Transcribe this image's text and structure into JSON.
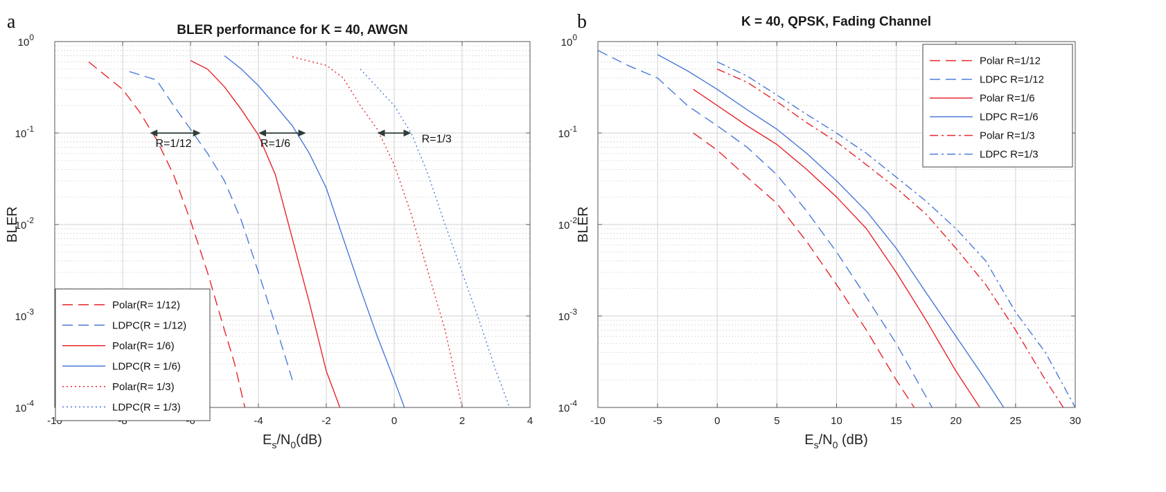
{
  "panels": [
    {
      "letter": "a"
    },
    {
      "letter": "b"
    }
  ],
  "colors": {
    "polar": "#e8232a",
    "ldpc": "#4a78d8",
    "arrow": "#2e3d3a"
  },
  "chart_data": [
    {
      "type": "line",
      "title": "BLER performance for K = 40, AWGN",
      "xlabel": "Es/N0(dB)",
      "ylabel": "BLER",
      "xscale": "linear",
      "yscale": "log",
      "xlim": [
        -10,
        4
      ],
      "ylim": [
        0.0001,
        1
      ],
      "xticks": [
        "-10",
        "-8",
        "-6",
        "-4",
        "-2",
        "0",
        "2",
        "4"
      ],
      "yticks": [
        {
          "base": "10",
          "exp": "0"
        },
        {
          "base": "10",
          "exp": "-1"
        },
        {
          "base": "10",
          "exp": "-2"
        },
        {
          "base": "10",
          "exp": "-3"
        },
        {
          "base": "10",
          "exp": "-4"
        }
      ],
      "grid": true,
      "legend_position": "bottom-left",
      "series": [
        {
          "name": "Polar(R= 1/12)",
          "color": "#e8232a",
          "style": "dashed",
          "x": [
            -9,
            -8,
            -7.5,
            -7,
            -6.5,
            -6,
            -5.5,
            -5,
            -4.7,
            -4.4
          ],
          "y": [
            0.6,
            0.3,
            0.17,
            0.085,
            0.035,
            0.011,
            0.003,
            0.0007,
            0.0003,
            0.0001
          ]
        },
        {
          "name": "LDPC(R = 1/12)",
          "color": "#4a78d8",
          "style": "dashed",
          "x": [
            -7.8,
            -7,
            -6.5,
            -6,
            -5.5,
            -5,
            -4.5,
            -4,
            -3.5,
            -3
          ],
          "y": [
            0.47,
            0.38,
            0.2,
            0.11,
            0.06,
            0.03,
            0.011,
            0.003,
            0.0008,
            0.0002
          ]
        },
        {
          "name": "Polar(R= 1/6)",
          "color": "#e8232a",
          "style": "solid",
          "x": [
            -6,
            -5.5,
            -5,
            -4.5,
            -4,
            -3.5,
            -3,
            -2.5,
            -2,
            -1.6
          ],
          "y": [
            0.62,
            0.5,
            0.32,
            0.18,
            0.095,
            0.035,
            0.007,
            0.0014,
            0.00025,
            0.0001
          ]
        },
        {
          "name": "LDPC(R = 1/6)",
          "color": "#4a78d8",
          "style": "solid",
          "x": [
            -5,
            -4.5,
            -4,
            -3.5,
            -3,
            -2.5,
            -2,
            -1.5,
            -1,
            -0.5,
            0,
            0.3
          ],
          "y": [
            0.7,
            0.5,
            0.33,
            0.2,
            0.12,
            0.06,
            0.025,
            0.007,
            0.002,
            0.0006,
            0.0002,
            0.0001
          ]
        },
        {
          "name": "Polar(R= 1/3)",
          "color": "#e8232a",
          "style": "dotted",
          "x": [
            -3,
            -2,
            -1.5,
            -1,
            -0.5,
            0,
            0.5,
            1,
            1.5,
            2
          ],
          "y": [
            0.68,
            0.55,
            0.4,
            0.2,
            0.11,
            0.045,
            0.013,
            0.003,
            0.0007,
            0.0001
          ]
        },
        {
          "name": "LDPC(R = 1/3)",
          "color": "#4a78d8",
          "style": "dotted",
          "x": [
            -1,
            0,
            0.5,
            1,
            1.5,
            2,
            2.5,
            3,
            3.4
          ],
          "y": [
            0.5,
            0.2,
            0.1,
            0.035,
            0.01,
            0.003,
            0.0009,
            0.00025,
            0.0001
          ]
        }
      ],
      "annotations": [
        {
          "text": "R=1/12",
          "x": -6.5,
          "y": 0.078,
          "x1": -7.2,
          "x2": -5.7,
          "y_arrow": 0.1
        },
        {
          "text": "R=1/6",
          "x": -3.5,
          "y": 0.078,
          "x1": -4.0,
          "x2": -2.6,
          "y_arrow": 0.1
        },
        {
          "text": "R=1/3",
          "x": 1.25,
          "y": 0.088,
          "x1": -0.5,
          "x2": 0.5,
          "y_arrow": 0.1
        }
      ]
    },
    {
      "type": "line",
      "title": "K = 40, QPSK, Fading Channel",
      "xlabel": "Es/N0 (dB)",
      "ylabel": "BLER",
      "xscale": "linear",
      "yscale": "log",
      "xlim": [
        -10,
        30
      ],
      "ylim": [
        0.0001,
        1
      ],
      "xticks": [
        "-10",
        "-5",
        "0",
        "5",
        "10",
        "15",
        "20",
        "25",
        "30"
      ],
      "yticks": [
        {
          "base": "10",
          "exp": "0"
        },
        {
          "base": "10",
          "exp": "-1"
        },
        {
          "base": "10",
          "exp": "-2"
        },
        {
          "base": "10",
          "exp": "-3"
        },
        {
          "base": "10",
          "exp": "-4"
        }
      ],
      "grid": true,
      "legend_position": "top-right",
      "series": [
        {
          "name": "Polar R=1/12",
          "color": "#e8232a",
          "style": "dashed",
          "x": [
            -2,
            0,
            2.5,
            5,
            7.5,
            10,
            12.5,
            15,
            16.5
          ],
          "y": [
            0.1,
            0.065,
            0.033,
            0.017,
            0.0065,
            0.0022,
            0.0007,
            0.0002,
            0.0001
          ]
        },
        {
          "name": "LDPC R=1/12",
          "color": "#4a78d8",
          "style": "dashed",
          "x": [
            -10,
            -7.5,
            -5,
            -2.5,
            0,
            2.5,
            5,
            7.5,
            10,
            12.5,
            15,
            18
          ],
          "y": [
            0.8,
            0.55,
            0.4,
            0.2,
            0.12,
            0.07,
            0.035,
            0.014,
            0.005,
            0.0016,
            0.0005,
            0.0001
          ]
        },
        {
          "name": "Polar R=1/6",
          "color": "#e8232a",
          "style": "solid",
          "x": [
            -2,
            0,
            2.5,
            5,
            7.5,
            10,
            12.5,
            15,
            17.5,
            20,
            22
          ],
          "y": [
            0.3,
            0.2,
            0.12,
            0.075,
            0.04,
            0.02,
            0.009,
            0.003,
            0.0009,
            0.00025,
            0.0001
          ]
        },
        {
          "name": "LDPC R=1/6",
          "color": "#4a78d8",
          "style": "solid",
          "x": [
            -5,
            -2.5,
            0,
            2.5,
            5,
            7.5,
            10,
            12.5,
            15,
            17.5,
            20,
            22.5,
            24
          ],
          "y": [
            0.72,
            0.48,
            0.3,
            0.18,
            0.11,
            0.06,
            0.03,
            0.014,
            0.0055,
            0.0018,
            0.0006,
            0.0002,
            0.0001
          ]
        },
        {
          "name": "Polar R=1/3",
          "color": "#e8232a",
          "style": "dashdot",
          "x": [
            0,
            2.5,
            5,
            7.5,
            10,
            12.5,
            15,
            17.5,
            20,
            22.5,
            25,
            27.5,
            29
          ],
          "y": [
            0.5,
            0.36,
            0.22,
            0.13,
            0.08,
            0.045,
            0.025,
            0.013,
            0.0055,
            0.0022,
            0.0007,
            0.0002,
            0.0001
          ]
        },
        {
          "name": "LDPC R=1/3",
          "color": "#4a78d8",
          "style": "dashdot",
          "x": [
            0,
            2.5,
            5,
            7.5,
            10,
            12.5,
            15,
            17.5,
            20,
            22.5,
            25,
            27.5,
            30
          ],
          "y": [
            0.6,
            0.42,
            0.26,
            0.16,
            0.1,
            0.06,
            0.033,
            0.018,
            0.009,
            0.004,
            0.0011,
            0.0004,
            0.0001
          ]
        }
      ]
    }
  ]
}
